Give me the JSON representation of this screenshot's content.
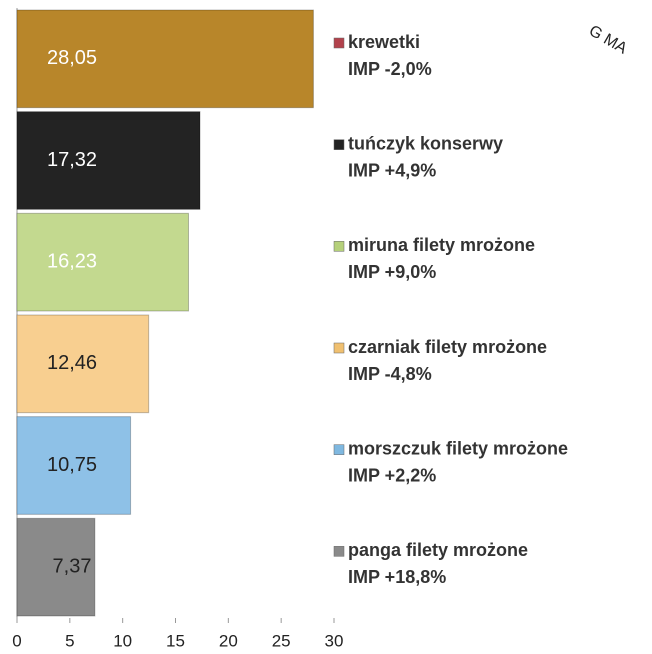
{
  "chart_data": {
    "type": "barh",
    "categories": [
      "krewetki",
      "tuńczyk konserwy",
      "miruna filety  mrożone",
      "czarniak filety mrożone",
      "morszczuk filety  mrożone",
      "panga filety mrożone"
    ],
    "category_notes": [
      "IMP -2,0%",
      "IMP +4,9%",
      "IMP +9,0%",
      "IMP -4,8%",
      "IMP +2,2%",
      "IMP +18,8%"
    ],
    "values": [
      28.05,
      17.32,
      16.23,
      12.46,
      10.75,
      7.37
    ],
    "value_labels": [
      "28,05",
      "17,32",
      "16,23",
      "12,46",
      "10,75",
      "7,37"
    ],
    "colors": [
      "#b8862a",
      "#232323",
      "#c3d98f",
      "#f8cf90",
      "#8ec1e7",
      "#8a8a8a"
    ],
    "legend_colors": [
      "#b2424c",
      "#232323",
      "#b5d07a",
      "#f0c070",
      "#7fb8e0",
      "#8a8a8a"
    ],
    "label_colors": [
      "#ffffff",
      "#ffffff",
      "#ffffff",
      "#222222",
      "#222222",
      "#222222"
    ],
    "xlim": [
      0,
      30
    ],
    "xticks": [
      0,
      5,
      10,
      15,
      20,
      25,
      30
    ],
    "annotation": "G MA"
  }
}
